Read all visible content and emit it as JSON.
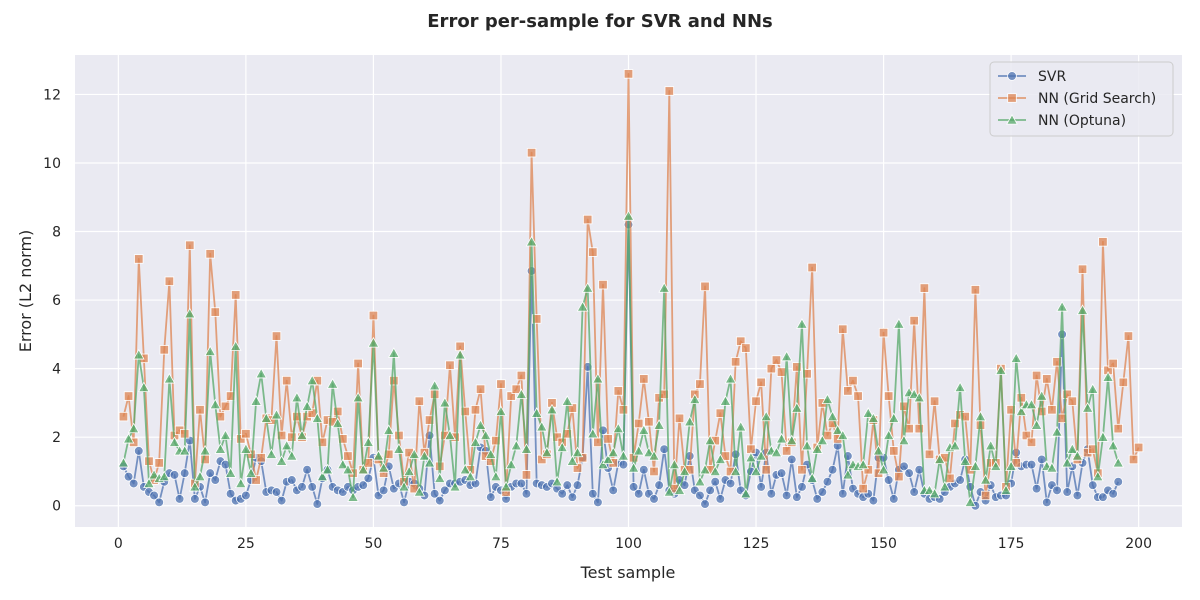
{
  "chart_data": {
    "type": "line",
    "title": "Error per-sample for SVR and NNs",
    "xlabel": "Test sample",
    "ylabel": "Error (L2 norm)",
    "xlim": [
      -8.5,
      208.5
    ],
    "ylim": [
      -0.62,
      13.15
    ],
    "xticks": [
      0,
      25,
      50,
      75,
      100,
      125,
      150,
      175,
      200
    ],
    "yticks": [
      0,
      2,
      4,
      6,
      8,
      10,
      12
    ],
    "grid": true,
    "legend_position": "top-right",
    "x_start": 1,
    "series": [
      {
        "name": "SVR",
        "color": "#4c72b0",
        "marker": "circle",
        "values": [
          1.15,
          0.85,
          0.65,
          1.6,
          0.55,
          0.4,
          0.3,
          0.1,
          0.7,
          0.95,
          0.9,
          0.2,
          0.95,
          1.9,
          0.2,
          0.55,
          0.1,
          0.95,
          0.75,
          1.3,
          1.2,
          0.35,
          0.15,
          0.2,
          0.3,
          0.75,
          1.4,
          1.3,
          0.4,
          0.45,
          0.4,
          0.15,
          0.7,
          0.75,
          0.45,
          0.55,
          1.05,
          0.55,
          0.05,
          0.8,
          1.05,
          0.55,
          0.45,
          0.4,
          0.55,
          0.45,
          0.55,
          0.6,
          0.8,
          1.4,
          0.3,
          0.45,
          1.15,
          0.5,
          0.65,
          0.1,
          0.7,
          0.65,
          0.5,
          0.3,
          2.05,
          0.35,
          0.15,
          0.45,
          0.65,
          0.65,
          0.7,
          0.75,
          0.6,
          0.65,
          1.7,
          1.6,
          0.25,
          0.55,
          0.45,
          0.2,
          0.55,
          0.65,
          0.65,
          0.35,
          6.85,
          0.65,
          0.6,
          0.55,
          0.65,
          0.5,
          0.35,
          0.6,
          0.25,
          0.6,
          1.4,
          4.05,
          0.35,
          0.1,
          2.2,
          1.1,
          0.45,
          1.25,
          1.2,
          8.2,
          0.55,
          0.35,
          1.05,
          0.35,
          0.2,
          0.6,
          1.65,
          0.45,
          0.35,
          0.75,
          0.6,
          1.45,
          0.45,
          0.3,
          0.05,
          0.45,
          0.7,
          0.2,
          0.75,
          0.65,
          1.5,
          0.45,
          0.3,
          1.0,
          1.55,
          0.55,
          1.55,
          0.35,
          0.9,
          0.95,
          0.3,
          1.35,
          0.25,
          0.55,
          1.2,
          0.75,
          0.2,
          0.4,
          0.7,
          1.05,
          1.75,
          0.35,
          1.45,
          0.5,
          0.35,
          0.25,
          0.35,
          0.15,
          1.4,
          1.4,
          0.75,
          0.2,
          1.05,
          1.15,
          0.95,
          0.4,
          1.05,
          0.35,
          0.2,
          0.25,
          0.2,
          0.4,
          0.55,
          0.65,
          0.75,
          1.35,
          0.55,
          0.0,
          0.4,
          0.15,
          0.6,
          0.25,
          0.3,
          0.3,
          0.65,
          1.55,
          1.15,
          1.2,
          1.2,
          0.5,
          1.35,
          0.1,
          0.6,
          0.45,
          5.0,
          0.4,
          1.15,
          0.3,
          1.25,
          1.65,
          0.6,
          0.25,
          0.25,
          0.45,
          0.35,
          0.7
        ]
      },
      {
        "name": "NN (Grid Search)",
        "color": "#dd8452",
        "marker": "square",
        "values": [
          2.6,
          3.2,
          1.85,
          7.2,
          4.3,
          1.3,
          0.75,
          1.25,
          4.55,
          6.55,
          2.05,
          2.2,
          2.1,
          7.6,
          0.65,
          2.8,
          1.35,
          7.35,
          5.65,
          2.6,
          2.9,
          3.2,
          6.15,
          1.95,
          2.1,
          1.5,
          0.75,
          1.4,
          2.55,
          2.5,
          4.95,
          2.05,
          3.65,
          2.0,
          2.6,
          2.0,
          2.6,
          2.7,
          3.65,
          1.85,
          2.5,
          2.45,
          2.75,
          1.95,
          1.45,
          0.95,
          4.15,
          1.05,
          1.25,
          5.55,
          1.35,
          0.95,
          1.5,
          3.65,
          2.05,
          0.7,
          1.55,
          0.5,
          3.05,
          1.55,
          2.5,
          3.25,
          1.15,
          2.05,
          4.1,
          2.0,
          4.65,
          2.75,
          1.05,
          2.8,
          3.4,
          1.45,
          1.3,
          1.9,
          3.55,
          0.4,
          3.2,
          3.4,
          3.8,
          0.9,
          10.3,
          5.45,
          1.35,
          1.5,
          3.0,
          2.0,
          1.85,
          2.1,
          2.85,
          1.1,
          1.4,
          8.35,
          7.4,
          1.85,
          6.45,
          1.95,
          1.25,
          3.35,
          2.8,
          12.6,
          1.4,
          2.4,
          3.7,
          2.45,
          1.0,
          3.15,
          3.25,
          12.1,
          0.5,
          2.55,
          1.05,
          1.05,
          3.25,
          3.55,
          6.4,
          1.05,
          1.9,
          2.7,
          1.45,
          1.0,
          4.2,
          4.8,
          4.6,
          1.65,
          3.05,
          3.6,
          1.05,
          4.0,
          4.25,
          3.9,
          1.6,
          1.85,
          4.05,
          1.05,
          3.85,
          6.95,
          1.7,
          3.0,
          2.05,
          2.4,
          1.95,
          5.15,
          3.35,
          3.65,
          3.2,
          0.5,
          1.05,
          2.5,
          0.95,
          5.05,
          3.2,
          1.6,
          0.85,
          2.9,
          2.25,
          5.4,
          2.25,
          6.35,
          1.5,
          3.05,
          1.35,
          1.4,
          0.8,
          2.4,
          2.65,
          2.6,
          1.05,
          6.3,
          2.35,
          0.3,
          1.25,
          1.25,
          4.0,
          0.55,
          2.8,
          1.25,
          3.15,
          2.05,
          1.85,
          3.8,
          2.75,
          3.7,
          2.8,
          4.2,
          2.55,
          3.25,
          3.05,
          1.35,
          6.9,
          1.55,
          1.65,
          0.95,
          7.7,
          3.95,
          4.15,
          2.25,
          3.6,
          4.95,
          1.35,
          1.7
        ]
      },
      {
        "name": "NN (Optuna)",
        "color": "#55a868",
        "marker": "triangle",
        "values": [
          1.25,
          1.95,
          2.25,
          4.4,
          3.45,
          0.65,
          0.9,
          0.8,
          0.85,
          3.7,
          1.85,
          1.6,
          1.6,
          5.6,
          0.55,
          0.85,
          1.6,
          4.5,
          2.95,
          1.65,
          2.05,
          0.95,
          4.65,
          0.65,
          1.65,
          0.95,
          3.05,
          3.85,
          2.55,
          1.5,
          2.65,
          1.3,
          1.75,
          1.45,
          3.15,
          2.05,
          2.9,
          3.65,
          2.55,
          0.85,
          1.05,
          3.55,
          2.4,
          1.2,
          1.05,
          0.25,
          3.15,
          1.05,
          1.85,
          4.75,
          1.45,
          1.1,
          2.2,
          4.45,
          1.65,
          0.55,
          1.0,
          1.5,
          0.4,
          1.45,
          1.25,
          3.5,
          0.8,
          3.0,
          2.05,
          0.55,
          4.4,
          1.05,
          0.85,
          1.85,
          2.35,
          2.05,
          1.5,
          0.85,
          2.75,
          0.55,
          1.2,
          1.75,
          3.25,
          1.65,
          7.7,
          2.7,
          2.3,
          1.55,
          2.8,
          0.7,
          1.7,
          3.05,
          1.3,
          1.55,
          5.8,
          6.35,
          2.1,
          3.7,
          1.2,
          1.35,
          1.55,
          2.25,
          1.45,
          8.45,
          1.1,
          1.6,
          2.2,
          1.55,
          1.45,
          2.35,
          6.35,
          0.4,
          1.2,
          0.45,
          1.0,
          2.45,
          3.1,
          0.7,
          1.05,
          1.9,
          1.0,
          1.35,
          3.05,
          3.7,
          1.0,
          2.3,
          0.35,
          1.4,
          1.0,
          1.45,
          2.6,
          1.6,
          1.55,
          1.95,
          4.35,
          1.9,
          2.85,
          5.3,
          1.75,
          0.8,
          1.65,
          1.9,
          3.1,
          2.6,
          2.2,
          2.05,
          0.9,
          1.2,
          1.15,
          1.2,
          2.7,
          2.55,
          1.6,
          1.05,
          2.05,
          2.55,
          5.3,
          1.9,
          3.3,
          3.25,
          3.15,
          0.45,
          0.45,
          0.35,
          1.35,
          0.55,
          1.7,
          1.75,
          3.45,
          1.3,
          0.1,
          1.15,
          2.6,
          0.75,
          1.75,
          1.15,
          3.95,
          0.45,
          1.15,
          4.3,
          2.75,
          2.95,
          2.95,
          2.35,
          3.2,
          1.15,
          1.1,
          2.15,
          5.8,
          1.25,
          1.65,
          1.45,
          5.7,
          2.85,
          3.4,
          0.85,
          2.0,
          3.75,
          1.75,
          1.25
        ]
      }
    ]
  }
}
